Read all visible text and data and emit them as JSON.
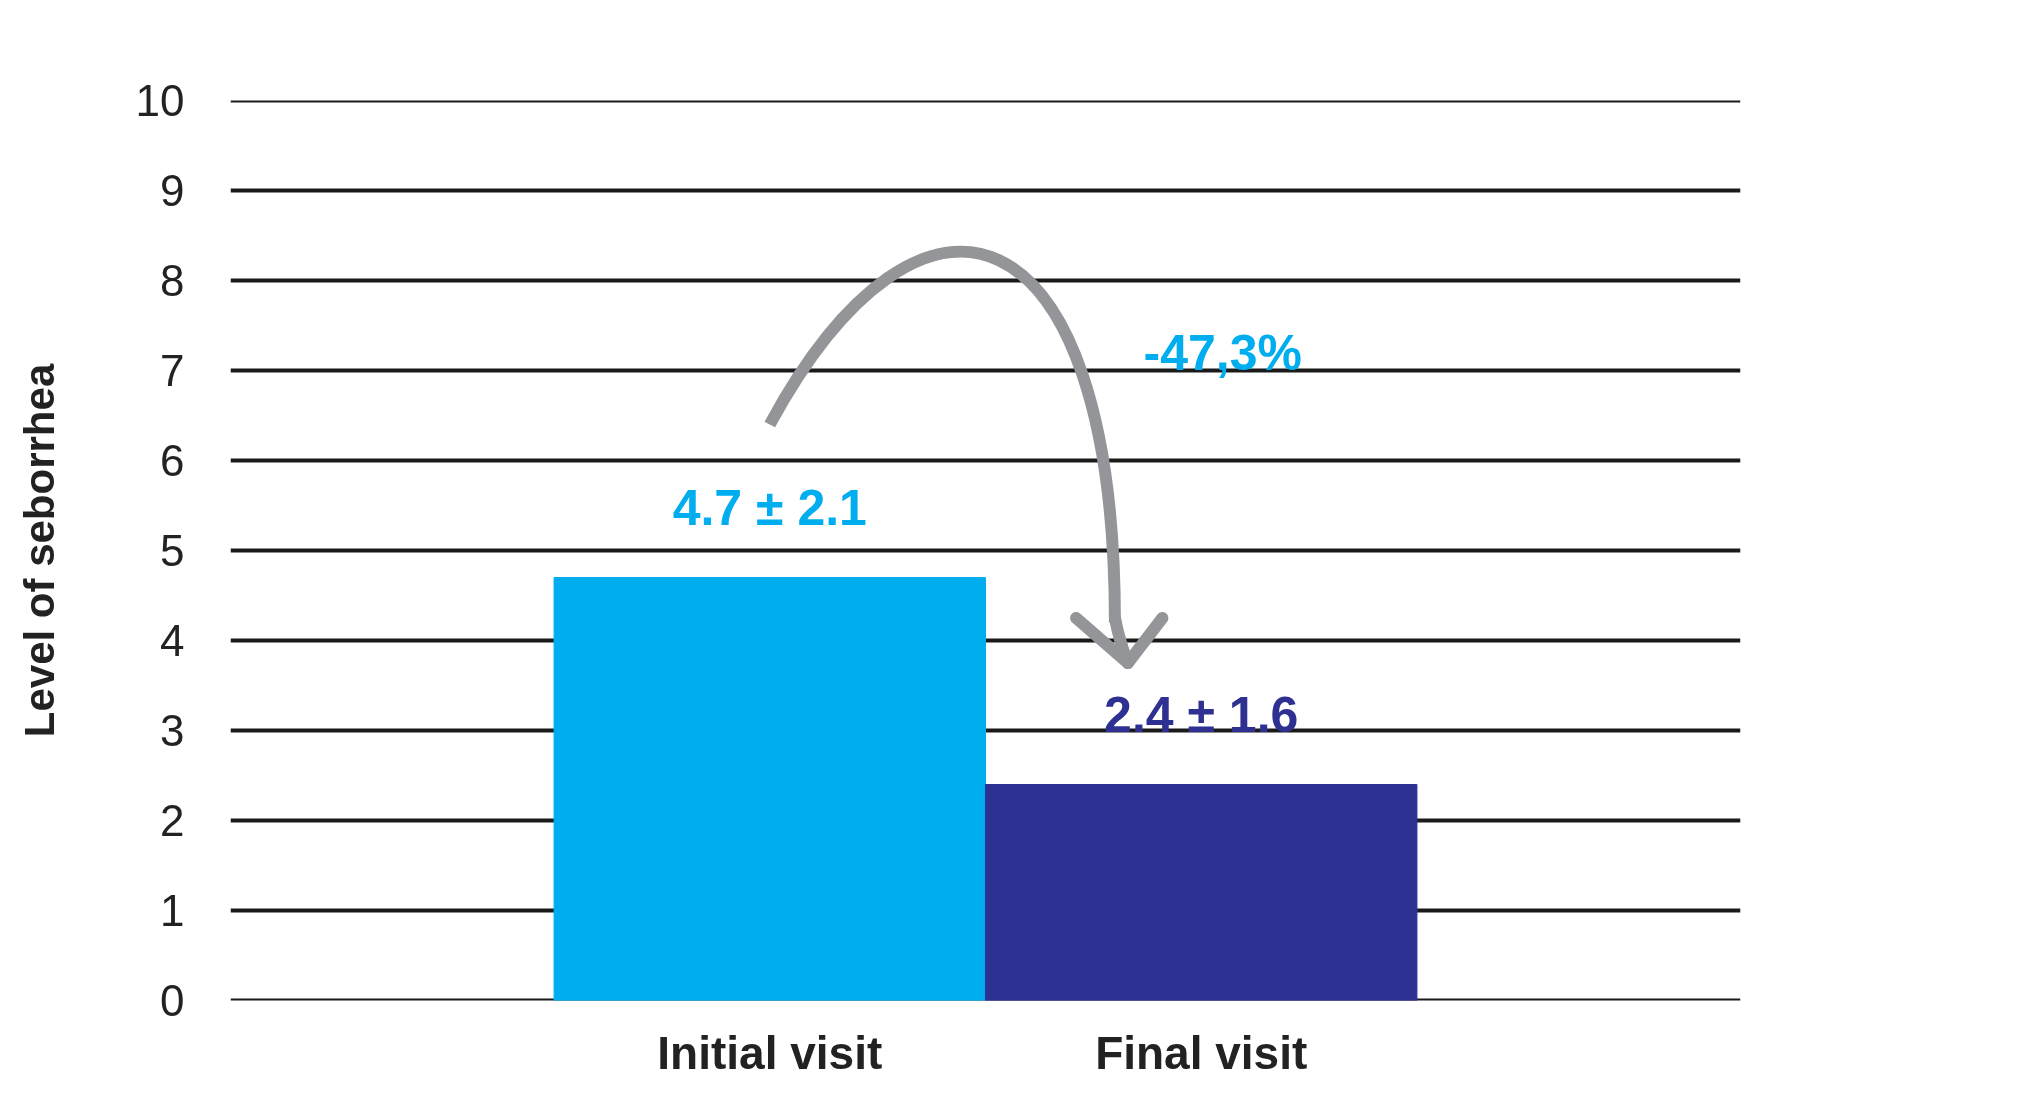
{
  "chart_data": {
    "type": "bar",
    "ylabel": "Level of seborrhea",
    "categories": [
      "Initial visit",
      "Final visit"
    ],
    "values": [
      4.7,
      2.4
    ],
    "colors": [
      "#00aeef",
      "#2e3192"
    ],
    "value_labels": [
      "4.7 ± 2.1",
      "2.4 ± 1.6"
    ],
    "ylim": [
      0,
      10
    ],
    "yticks": [
      0,
      1,
      2,
      3,
      4,
      5,
      6,
      7,
      8,
      9,
      10
    ],
    "grid": "y",
    "annotations": [
      "-47,3%"
    ]
  }
}
